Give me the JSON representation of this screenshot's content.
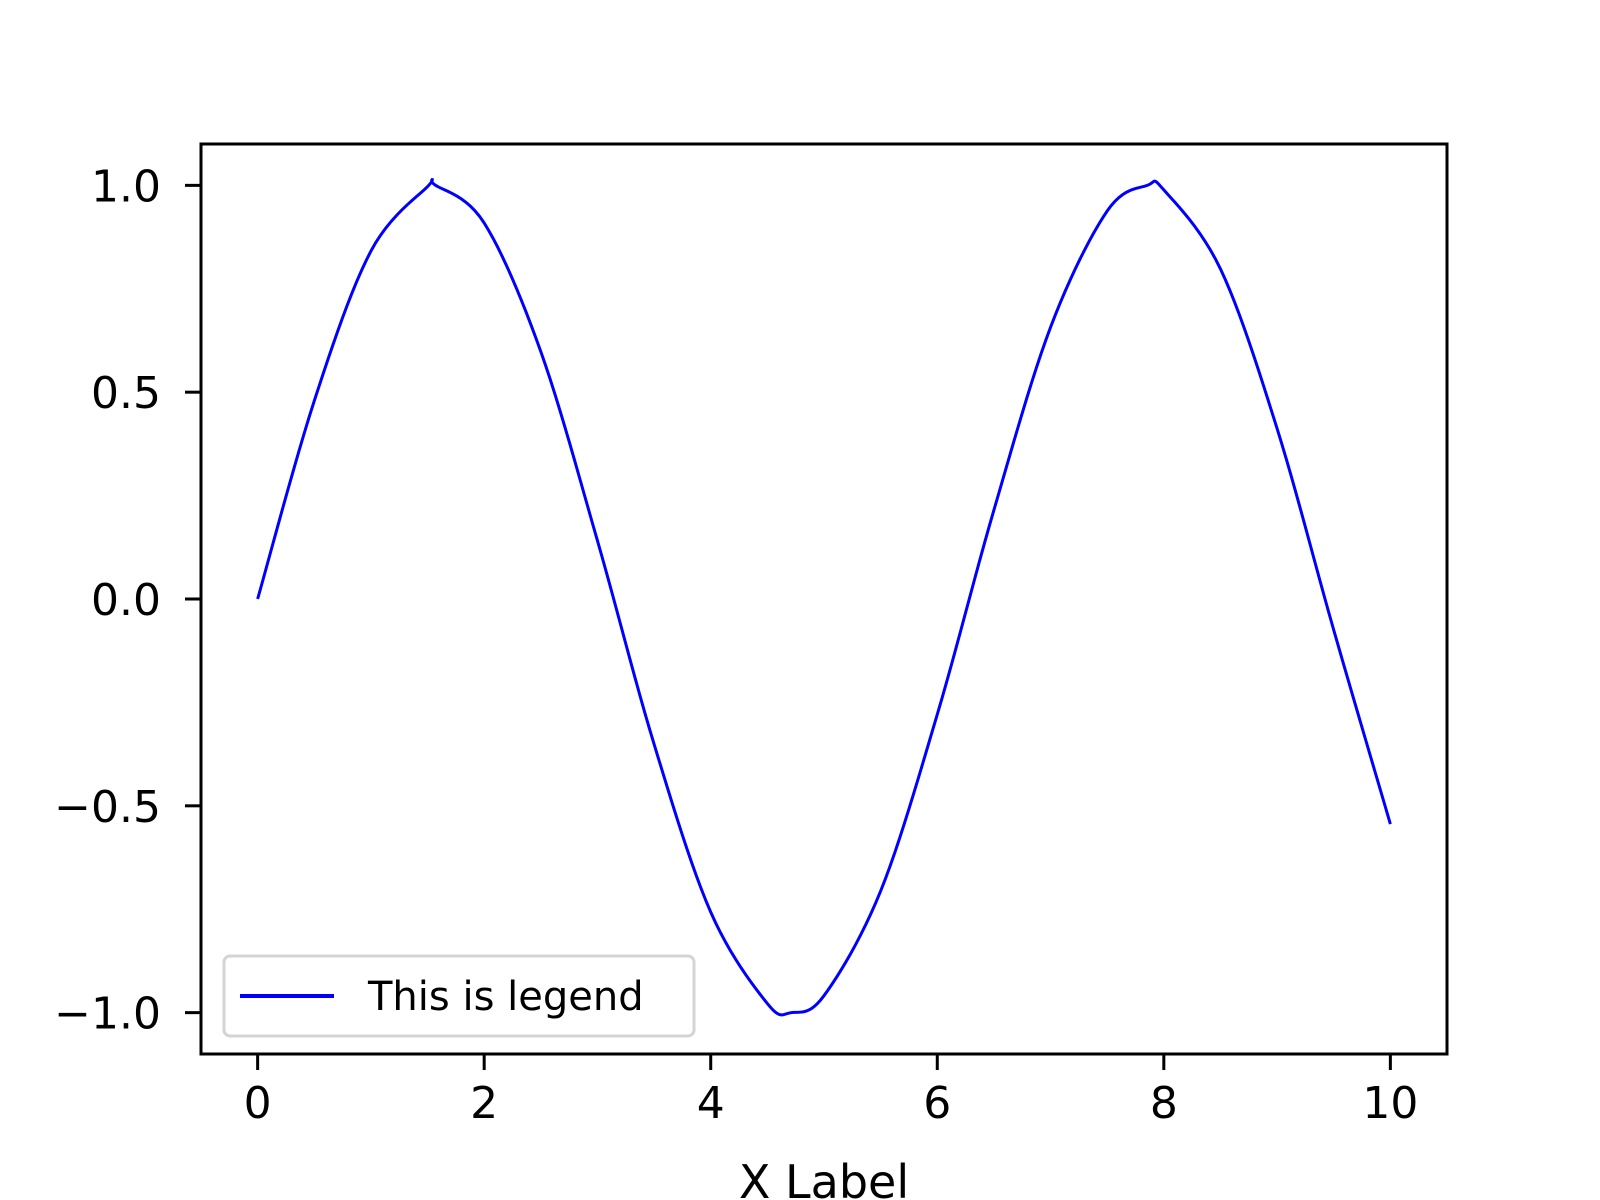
{
  "chart_data": {
    "type": "line",
    "title": "",
    "xlabel": "X Label",
    "ylabel": "",
    "xlim": [
      -0.5,
      10.5
    ],
    "ylim": [
      -1.1,
      1.1
    ],
    "xticks": [
      0,
      2,
      4,
      6,
      8,
      10
    ],
    "xtick_labels": [
      "0",
      "2",
      "4",
      "6",
      "8",
      "10"
    ],
    "yticks": [
      1.0,
      0.5,
      0.0,
      -0.5,
      -1.0
    ],
    "ytick_labels": [
      "1.0",
      "0.5",
      "0.0",
      "−0.5",
      "−1.0"
    ],
    "grid": false,
    "legend": {
      "placement": "lower-left",
      "entries": [
        "This is legend"
      ]
    },
    "series": [
      {
        "name": "This is legend",
        "color": "#0000ff",
        "x": [
          0.0,
          0.5,
          1.0,
          1.5,
          1.571,
          2.0,
          2.5,
          3.0,
          3.5,
          4.0,
          4.5,
          4.712,
          5.0,
          5.5,
          6.0,
          6.5,
          7.0,
          7.5,
          7.854,
          8.0,
          8.5,
          9.0,
          9.5,
          10.0
        ],
        "y": [
          0.0,
          0.479,
          0.841,
          0.997,
          1.0,
          0.909,
          0.598,
          0.141,
          -0.351,
          -0.757,
          -0.978,
          -1.0,
          -0.959,
          -0.706,
          -0.279,
          0.215,
          0.657,
          0.938,
          1.0,
          0.989,
          0.798,
          0.412,
          -0.075,
          -0.544
        ]
      }
    ]
  }
}
